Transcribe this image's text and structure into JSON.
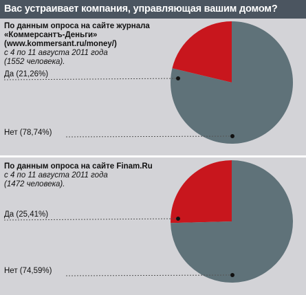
{
  "title": "Вас устраивает компания, управляющая вашим домом?",
  "colors": {
    "background": "#d3d3d7",
    "title_bar": "#4b5560",
    "yes": "#c8161d",
    "no": "#5f7279"
  },
  "chart_data": [
    {
      "type": "pie",
      "source_lines": [
        "По данным опроса на сайте журнала",
        "«Коммерсантъ-Деньги»",
        "(www.kommersant.ru/money/)"
      ],
      "meta_lines": [
        "с 4 по 11 августа 2011 года",
        "(1552 человека)."
      ],
      "slices": [
        {
          "label": "Да (21,26%)",
          "value": 21.26,
          "color": "#c8161d"
        },
        {
          "label": "Нет (78,74%)",
          "value": 78.74,
          "color": "#5f7279"
        }
      ]
    },
    {
      "type": "pie",
      "source_lines": [
        "По данным опроса на сайте Finam.Ru"
      ],
      "meta_lines": [
        "с 4 по 11 августа 2011 года",
        "(1472 человека)."
      ],
      "slices": [
        {
          "label": "Да (25,41%)",
          "value": 25.41,
          "color": "#c8161d"
        },
        {
          "label": "Нет (74,59%)",
          "value": 74.59,
          "color": "#5f7279"
        }
      ]
    }
  ]
}
